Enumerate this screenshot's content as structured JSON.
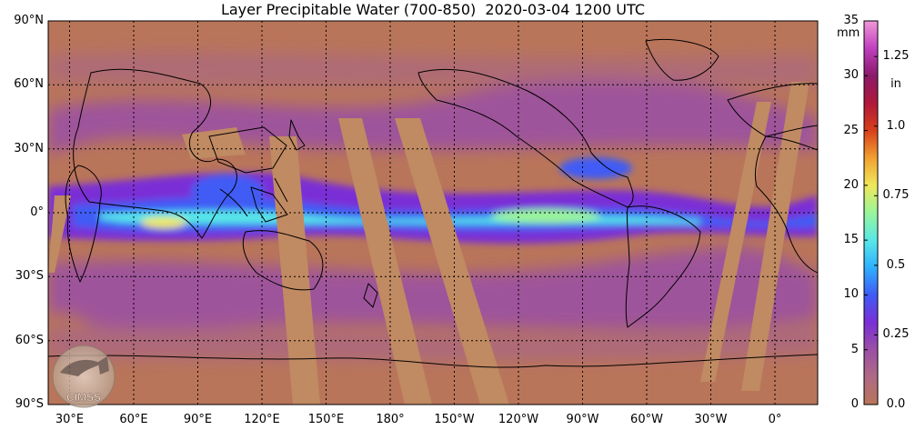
{
  "title": "Layer Precipitable Water (700-850)  2020-03-04 1200 UTC",
  "lat_labels": [
    "90°N",
    "60°N",
    "30°N",
    "0°",
    "30°S",
    "60°S",
    "90°S"
  ],
  "lon_labels": [
    "30°E",
    "60°E",
    "90°E",
    "120°E",
    "150°E",
    "180°",
    "150°W",
    "120°W",
    "90°W",
    "60°W",
    "30°W",
    "0°"
  ],
  "colorbar": {
    "unit_left": "mm",
    "unit_right": "in",
    "mm_ticks": [
      "35",
      "30",
      "25",
      "20",
      "15",
      "10",
      "5",
      "0"
    ],
    "in_ticks": [
      "1.25",
      "1.0",
      "0.75",
      "0.5",
      "0.25",
      "0.0"
    ],
    "colors": [
      "#b9755a",
      "#b06a84",
      "#9a4fa6",
      "#7a2fd6",
      "#3f5bf5",
      "#2fb0ff",
      "#59e8e8",
      "#9af59a",
      "#f0e85a",
      "#f0a030",
      "#d8401a",
      "#b0183a",
      "#8a1a6a",
      "#c040c0",
      "#f098d8"
    ]
  },
  "logo": {
    "text": "CIMSS"
  },
  "colors": {
    "background": "#b9755a",
    "swath": "#c08a62",
    "moist_core": "#59e8e8",
    "coastline": "#000000"
  }
}
